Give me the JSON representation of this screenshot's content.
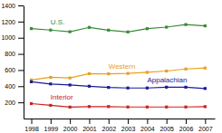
{
  "chart_data": {
    "type": "line",
    "x": [
      1998,
      1999,
      2000,
      2001,
      2002,
      2003,
      2004,
      2005,
      2006,
      2007
    ],
    "series": [
      {
        "name": "U.S.",
        "color": "#3a8a3a",
        "values": [
          1113,
          1095,
          1074,
          1128,
          1094,
          1072,
          1112,
          1131,
          1163,
          1147
        ]
      },
      {
        "name": "Western",
        "color": "#e8a020",
        "values": [
          478,
          510,
          502,
          555,
          553,
          558,
          572,
          588,
          613,
          625
        ]
      },
      {
        "name": "Appalachian",
        "color": "#1a1a99",
        "values": [
          455,
          428,
          415,
          400,
          385,
          378,
          378,
          388,
          388,
          372
        ]
      },
      {
        "name": "Interior",
        "color": "#cc2222",
        "values": [
          185,
          163,
          142,
          148,
          148,
          143,
          143,
          143,
          143,
          147
        ]
      }
    ],
    "xlim": [
      1997.6,
      2007.5
    ],
    "xticks": [
      1998,
      1999,
      2000,
      2001,
      2002,
      2003,
      2004,
      2005,
      2006,
      2007
    ],
    "ylim": [
      0,
      1400
    ],
    "yticks": [
      200,
      400,
      600,
      800,
      1000,
      1200,
      1400
    ],
    "marker": "square",
    "grid": false
  }
}
